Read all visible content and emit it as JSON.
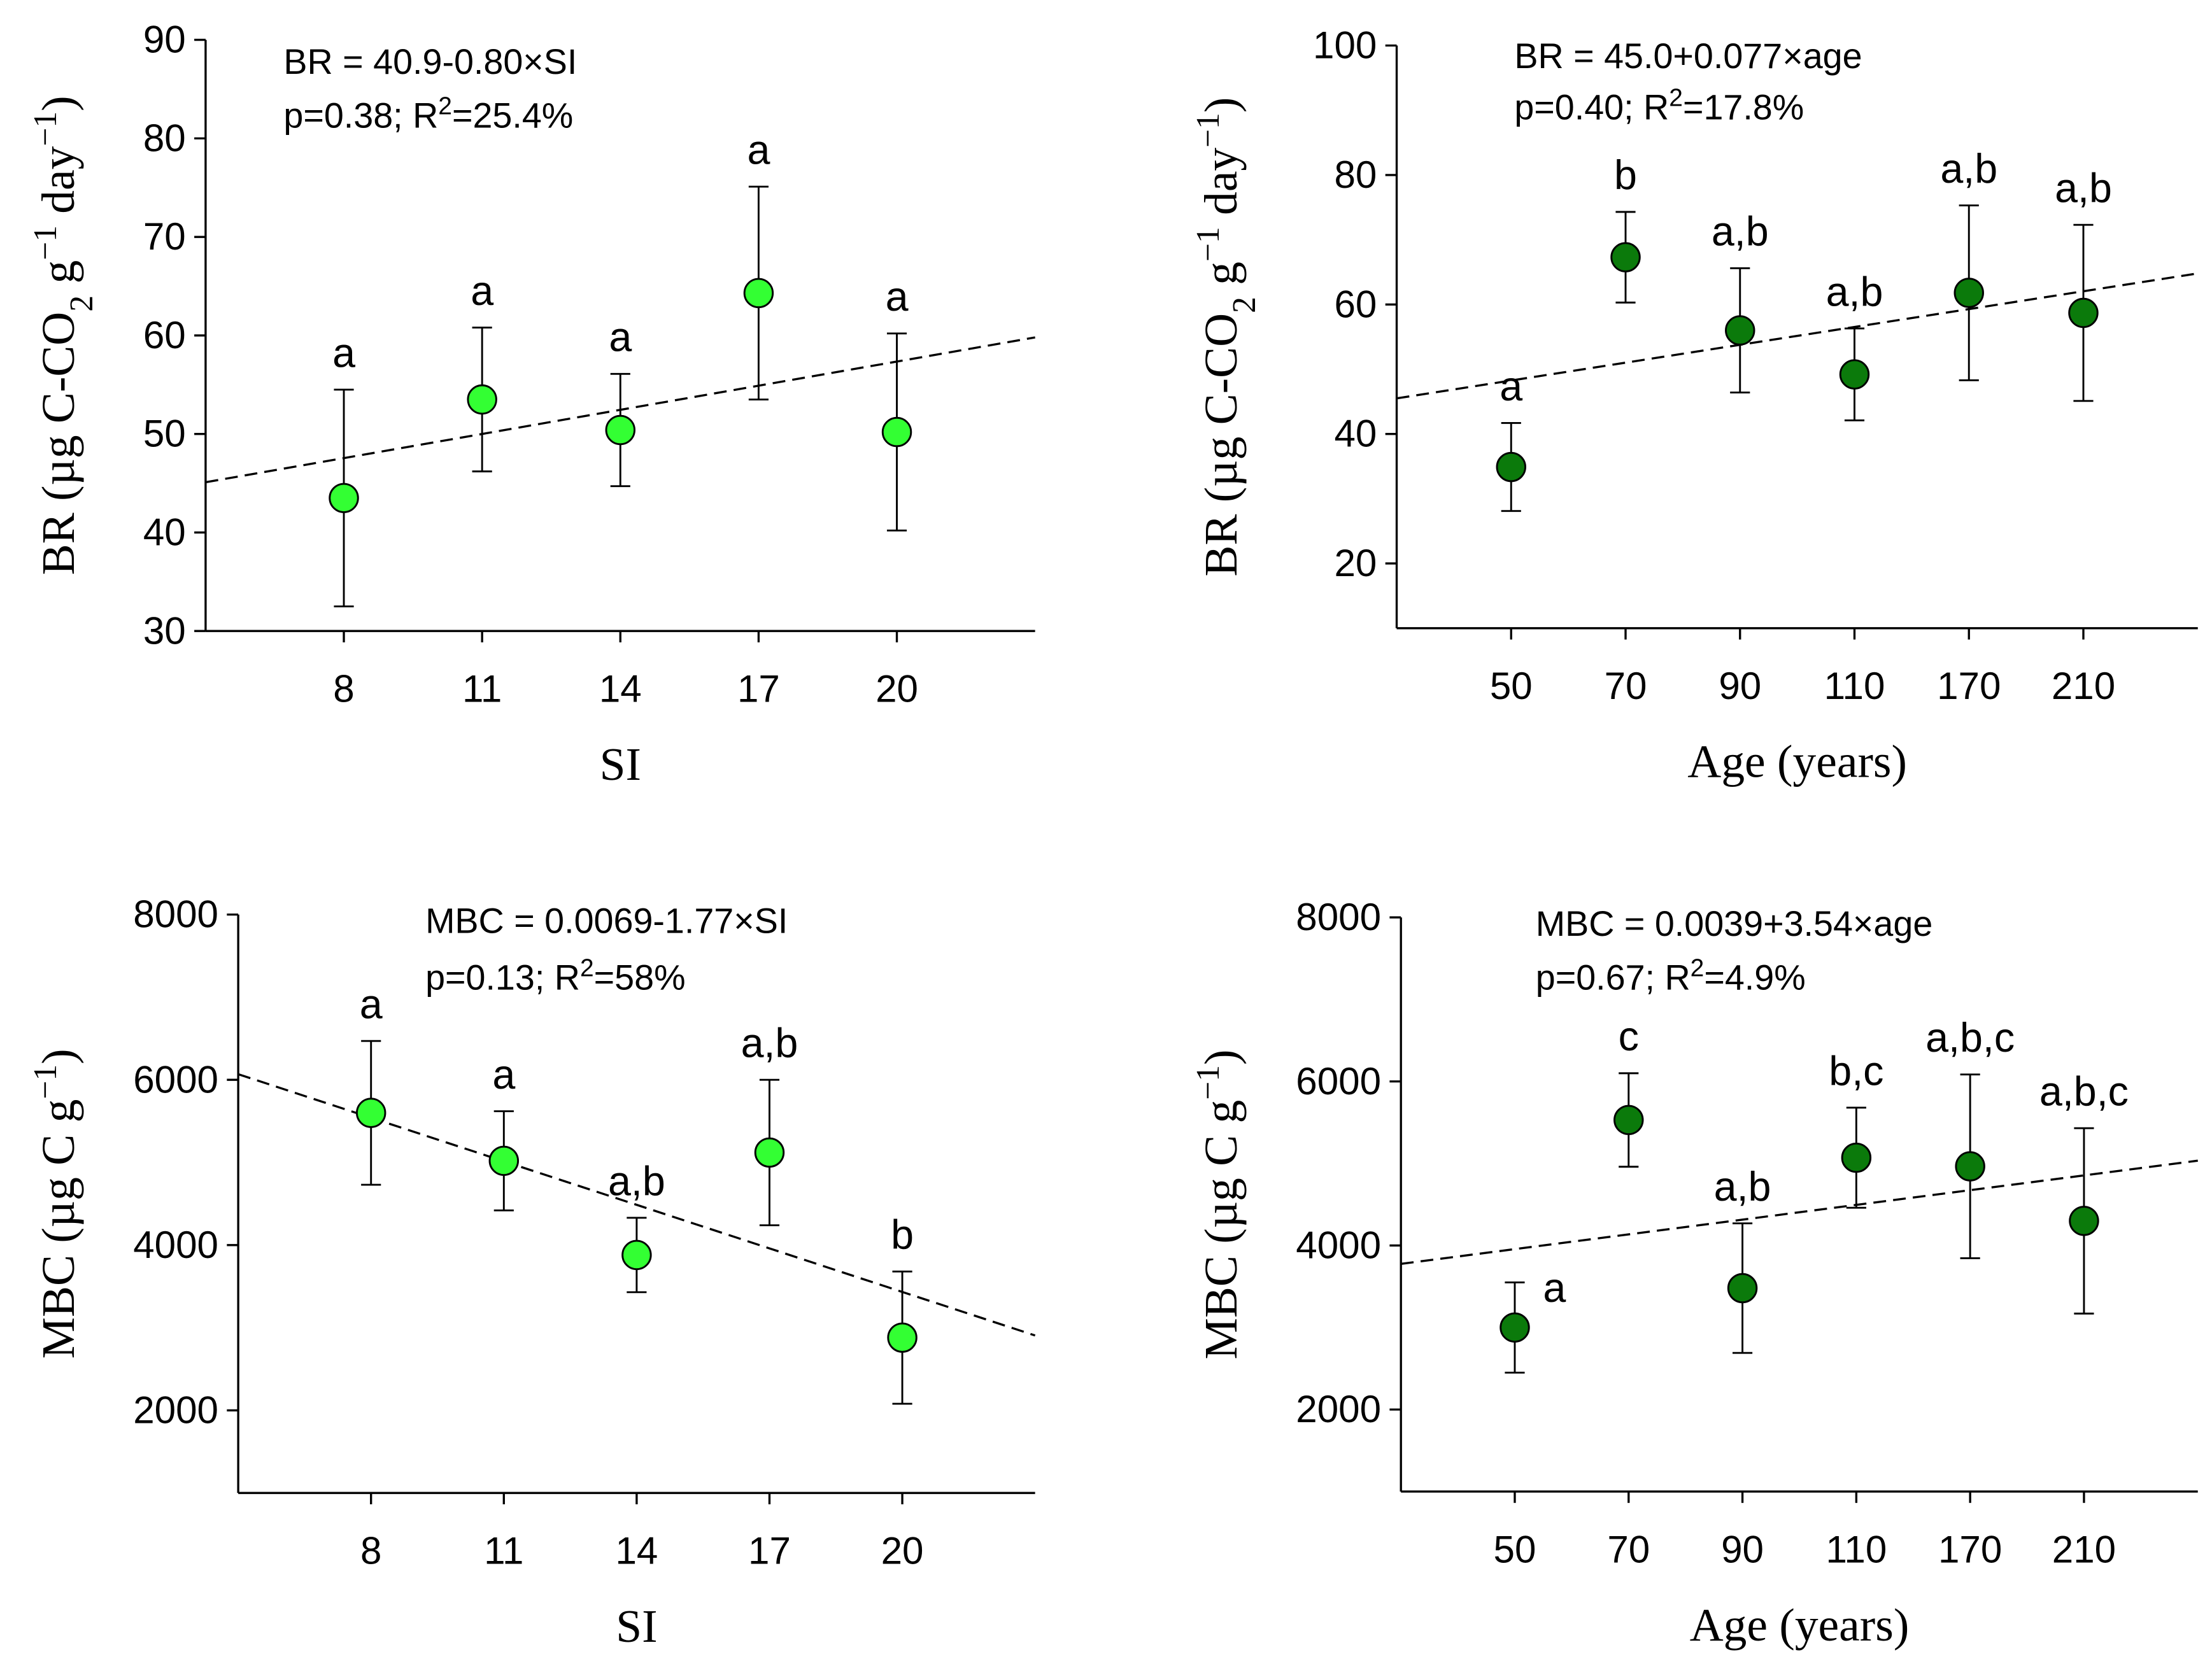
{
  "chart_data": [
    {
      "type": "scatter",
      "color": "#33ff33",
      "y_label": [
        {
          "text": "BR (µg C-CO"
        },
        {
          "text": "2",
          "shift": "sub"
        },
        {
          "text": " g"
        },
        {
          "text": "−1",
          "shift": "sup"
        },
        {
          "text": " day"
        },
        {
          "text": "−1",
          "shift": "sup"
        },
        {
          "text": ")"
        }
      ],
      "x_label": "SI",
      "categories": [
        "8",
        "11",
        "14",
        "17",
        "20"
      ],
      "values": [
        43.5,
        53.5,
        50.4,
        64.3,
        50.2
      ],
      "errors": [
        11,
        7.3,
        5.7,
        10.8,
        10
      ],
      "letters": [
        "a",
        "a",
        "a",
        "a",
        "a"
      ],
      "ylim": [
        30,
        90
      ],
      "yticks": [
        30,
        40,
        50,
        60,
        70,
        80,
        90
      ],
      "trend_line": [
        45.1,
        59.8
      ],
      "annotations": [
        [
          {
            "text": "BR = 40.9-0.80×SI"
          }
        ],
        [
          {
            "text": "p=0.38; R"
          },
          {
            "text": "2",
            "shift": "sup"
          },
          {
            "text": "=25.4%"
          }
        ]
      ]
    },
    {
      "type": "scatter",
      "color": "#0b7a0b",
      "y_label": [
        {
          "text": "BR (µg C-CO"
        },
        {
          "text": "2",
          "shift": "sub"
        },
        {
          "text": " g"
        },
        {
          "text": "−1",
          "shift": "sup"
        },
        {
          "text": " day"
        },
        {
          "text": "−1",
          "shift": "sup"
        },
        {
          "text": ")"
        }
      ],
      "x_label": "Age (years)",
      "categories": [
        "50",
        "70",
        "90",
        "110",
        "170",
        "210"
      ],
      "values": [
        34.9,
        67.3,
        56,
        49.2,
        61.8,
        58.7
      ],
      "errors": [
        6.8,
        7,
        9.6,
        7.1,
        13.5,
        13.6
      ],
      "letters": [
        "a",
        "b",
        "a,b",
        "a,b",
        "a,b",
        "a,b"
      ],
      "ylim": [
        10,
        100
      ],
      "yticks": [
        20,
        40,
        60,
        80,
        100
      ],
      "trend_line": [
        45.5,
        64.8
      ],
      "annotations": [
        [
          {
            "text": "BR = 45.0+0.077×age"
          }
        ],
        [
          {
            "text": "p=0.40; R"
          },
          {
            "text": "2",
            "shift": "sup"
          },
          {
            "text": "=17.8%"
          }
        ]
      ]
    },
    {
      "type": "scatter",
      "color": "#33ff33",
      "y_label": [
        {
          "text": "MBC (µg C g"
        },
        {
          "text": "−1",
          "shift": "sup"
        },
        {
          "text": ")"
        }
      ],
      "x_label": "SI",
      "categories": [
        "8",
        "11",
        "14",
        "17",
        "20"
      ],
      "values": [
        5600,
        5020,
        3880,
        5120,
        2880
      ],
      "errors": [
        870,
        600,
        450,
        880,
        800
      ],
      "letters": [
        "a",
        "a",
        "a,b",
        "a,b",
        "b"
      ],
      "ylim": [
        1000,
        8000
      ],
      "yticks": [
        2000,
        4000,
        6000,
        8000
      ],
      "trend_line": [
        6068,
        2906
      ],
      "annotations": [
        [
          {
            "text": "MBC = 0.0069-1.77×SI"
          }
        ],
        [
          {
            "text": "p=0.13; R"
          },
          {
            "text": "2",
            "shift": "sup"
          },
          {
            "text": "=58%"
          }
        ]
      ]
    },
    {
      "type": "scatter",
      "color": "#0b7a0b",
      "y_label": [
        {
          "text": "MBC (µg C g"
        },
        {
          "text": "−1",
          "shift": "sup"
        },
        {
          "text": ")"
        }
      ],
      "x_label": "Age (years)",
      "categories": [
        "50",
        "70",
        "90",
        "110",
        "170",
        "210"
      ],
      "values": [
        3000,
        5530,
        3480,
        5070,
        4965,
        4300
      ],
      "errors": [
        550,
        570,
        790,
        610,
        1120,
        1130
      ],
      "letters": [
        "a",
        "c",
        "a,b",
        "b,c",
        "a,b,c",
        "a,b,c"
      ],
      "ylim": [
        1000,
        8000
      ],
      "yticks": [
        2000,
        4000,
        6000,
        8000
      ],
      "trend_line": [
        3776,
        5034
      ],
      "annotations": [
        [
          {
            "text": "MBC = 0.0039+3.54×age"
          }
        ],
        [
          {
            "text": "p=0.67; R"
          },
          {
            "text": "2",
            "shift": "sup"
          },
          {
            "text": "=4.9%"
          }
        ]
      ]
    }
  ]
}
